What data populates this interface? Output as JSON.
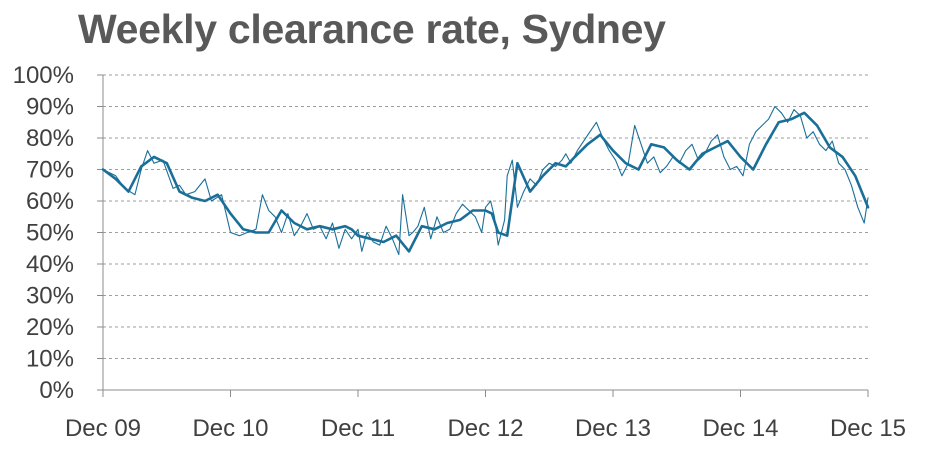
{
  "chart_data": {
    "type": "line",
    "title": "Weekly clearance rate, Sydney",
    "xlabel": "",
    "ylabel": "",
    "ylim": [
      0,
      100
    ],
    "xlim": [
      "Dec 09",
      "Dec 15"
    ],
    "y_ticks": [
      "0%",
      "10%",
      "20%",
      "30%",
      "40%",
      "50%",
      "60%",
      "70%",
      "80%",
      "90%",
      "100%"
    ],
    "x_ticks": [
      "Dec 09",
      "Dec 10",
      "Dec 11",
      "Dec 12",
      "Dec 13",
      "Dec 14",
      "Dec 15"
    ],
    "grid": "horizontal dashed",
    "colors": {
      "series": "#1a6f99",
      "grid": "#9e9e9e",
      "axis": "#8c8c8c"
    },
    "series": [
      {
        "style": "thick smoothed",
        "x": [
          2009.95,
          2010.05,
          2010.15,
          2010.25,
          2010.35,
          2010.45,
          2010.55,
          2010.65,
          2010.75,
          2010.85,
          2010.95,
          2011.05,
          2011.15,
          2011.25,
          2011.35,
          2011.45,
          2011.55,
          2011.65,
          2011.75,
          2011.85,
          2011.9,
          2011.95,
          2012.05,
          2012.15,
          2012.25,
          2012.35,
          2012.45,
          2012.55,
          2012.65,
          2012.75,
          2012.85,
          2012.95,
          2013.0,
          2013.05,
          2013.12,
          2013.2,
          2013.3,
          2013.4,
          2013.5,
          2013.58,
          2013.65,
          2013.75,
          2013.85,
          2013.95,
          2014.05,
          2014.15,
          2014.25,
          2014.35,
          2014.45,
          2014.55,
          2014.65,
          2014.75,
          2014.85,
          2014.95,
          2015.05,
          2015.15,
          2015.25,
          2015.35,
          2015.45,
          2015.55,
          2015.65,
          2015.75,
          2015.85,
          2015.95
        ],
        "y": [
          70,
          67,
          63,
          71,
          74,
          72,
          63,
          61,
          60,
          62,
          56,
          51,
          50,
          50,
          57,
          53,
          51,
          52,
          51,
          52,
          51,
          49,
          48,
          47,
          49,
          44,
          52,
          51,
          53,
          54,
          57,
          57,
          56,
          50,
          49,
          72,
          63,
          68,
          72,
          71,
          74,
          78,
          81,
          76,
          72,
          70,
          78,
          77,
          73,
          70,
          75,
          77,
          79,
          74,
          70,
          78,
          85,
          86,
          88,
          84,
          77,
          74,
          68,
          58
        ]
      },
      {
        "style": "thin weekly",
        "x": [
          2009.95,
          2010.05,
          2010.12,
          2010.2,
          2010.25,
          2010.3,
          2010.35,
          2010.42,
          2010.5,
          2010.55,
          2010.6,
          2010.67,
          2010.75,
          2010.8,
          2010.88,
          2010.95,
          2011.02,
          2011.08,
          2011.15,
          2011.2,
          2011.25,
          2011.3,
          2011.35,
          2011.4,
          2011.45,
          2011.5,
          2011.55,
          2011.6,
          2011.65,
          2011.7,
          2011.75,
          2011.8,
          2011.85,
          2011.9,
          2011.95,
          2011.98,
          2012.02,
          2012.07,
          2012.12,
          2012.17,
          2012.22,
          2012.27,
          2012.3,
          2012.35,
          2012.38,
          2012.42,
          2012.47,
          2012.52,
          2012.57,
          2012.62,
          2012.67,
          2012.72,
          2012.77,
          2012.82,
          2012.87,
          2012.92,
          2012.95,
          2012.99,
          2013.02,
          2013.05,
          2013.1,
          2013.12,
          2013.16,
          2013.2,
          2013.25,
          2013.3,
          2013.35,
          2013.4,
          2013.45,
          2013.5,
          2013.55,
          2013.58,
          2013.62,
          2013.67,
          2013.72,
          2013.77,
          2013.82,
          2013.87,
          2013.92,
          2013.97,
          2014.02,
          2014.07,
          2014.12,
          2014.17,
          2014.22,
          2014.27,
          2014.32,
          2014.37,
          2014.42,
          2014.47,
          2014.52,
          2014.57,
          2014.62,
          2014.67,
          2014.72,
          2014.77,
          2014.82,
          2014.87,
          2014.92,
          2014.97,
          2015.02,
          2015.07,
          2015.12,
          2015.17,
          2015.22,
          2015.27,
          2015.32,
          2015.37,
          2015.42,
          2015.47,
          2015.52,
          2015.57,
          2015.62,
          2015.67,
          2015.72,
          2015.77,
          2015.82,
          2015.87,
          2015.92,
          2015.95
        ],
        "y": [
          70,
          68,
          64,
          62,
          70,
          76,
          72,
          73,
          64,
          65,
          62,
          63,
          67,
          60,
          62,
          50,
          49,
          50,
          51,
          62,
          57,
          55,
          50,
          56,
          49,
          52,
          56,
          51,
          52,
          48,
          53,
          45,
          51,
          48,
          51,
          44,
          50,
          47,
          46,
          52,
          48,
          43,
          62,
          49,
          50,
          52,
          58,
          48,
          55,
          50,
          51,
          56,
          59,
          57,
          55,
          50,
          58,
          60,
          55,
          46,
          54,
          68,
          73,
          58,
          63,
          67,
          65,
          70,
          72,
          71,
          73,
          75,
          72,
          76,
          79,
          82,
          85,
          80,
          76,
          73,
          68,
          72,
          84,
          78,
          72,
          74,
          69,
          71,
          74,
          72,
          76,
          78,
          73,
          75,
          79,
          81,
          74,
          70,
          71,
          68,
          78,
          82,
          84,
          86,
          90,
          88,
          85,
          89,
          87,
          80,
          82,
          78,
          76,
          79,
          72,
          70,
          65,
          58,
          53,
          61
        ]
      }
    ]
  }
}
